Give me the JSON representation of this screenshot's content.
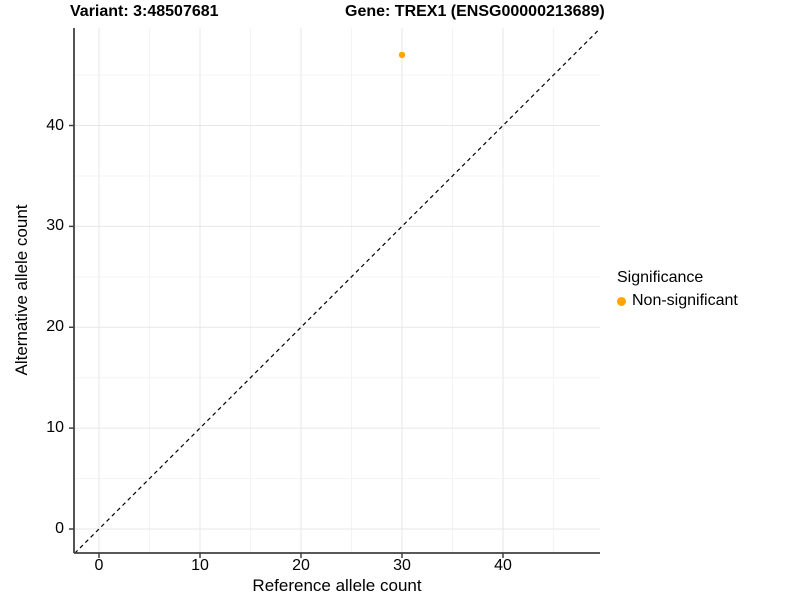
{
  "chart_data": {
    "type": "scatter",
    "titles": [
      "Variant: 3:48507681",
      "Gene: TREX1 (ENSG00000213689)"
    ],
    "xlabel": "Reference allele count",
    "ylabel": "Alternative allele count",
    "x_ticks": [
      0,
      10,
      20,
      30,
      40
    ],
    "y_ticks": [
      0,
      10,
      20,
      30,
      40
    ],
    "x_minor_ticks": [
      5,
      15,
      25,
      35,
      45
    ],
    "y_minor_ticks": [
      5,
      15,
      25,
      35,
      45
    ],
    "xlim": [
      -2.5,
      49.6
    ],
    "ylim": [
      -2.4,
      49.7
    ],
    "grid": true,
    "points": [
      {
        "x": 30,
        "y": 47,
        "series": "Non-significant"
      }
    ],
    "identity_line": {
      "slope": 1,
      "intercept": 0,
      "style": "dashed",
      "color": "#000000"
    },
    "legend": {
      "title": "Significance",
      "position": "right",
      "items": [
        {
          "label": "Non-significant",
          "color": "#FFA500"
        }
      ]
    },
    "colors": {
      "point": "#FFA500",
      "grid_major": "#E7E7E7",
      "grid_minor": "#F3F3F3",
      "axis": "#404040",
      "text": "#000000",
      "background": "#FFFFFF"
    }
  }
}
